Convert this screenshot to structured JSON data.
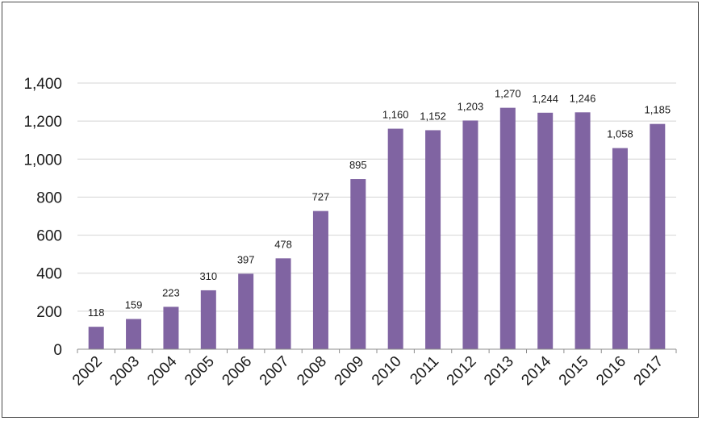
{
  "chart_data": {
    "type": "bar",
    "title": "",
    "xlabel": "",
    "ylabel": "",
    "categories": [
      "2002",
      "2003",
      "2004",
      "2005",
      "2006",
      "2007",
      "2008",
      "2009",
      "2010",
      "2011",
      "2012",
      "2013",
      "2014",
      "2015",
      "2016",
      "2017"
    ],
    "values": [
      118,
      159,
      223,
      310,
      397,
      478,
      727,
      895,
      1160,
      1152,
      1203,
      1270,
      1244,
      1246,
      1058,
      1185
    ],
    "value_labels": [
      "118",
      "159",
      "223",
      "310",
      "397",
      "478",
      "727",
      "895",
      "1,160",
      "1,152",
      "1,203",
      "1,270",
      "1,244",
      "1,246",
      "1,058",
      "1,185"
    ],
    "ylim": [
      0,
      1400
    ],
    "yticks": [
      0,
      200,
      400,
      600,
      800,
      1000,
      1200,
      1400
    ],
    "ytick_labels": [
      "0",
      "200",
      "400",
      "600",
      "800",
      "1,000",
      "1,200",
      "1,400"
    ],
    "grid": true,
    "legend": "none",
    "colors": {
      "bar": "#8064a2",
      "grid": "#d4d4d4",
      "axis": "#8c8c8c",
      "frame": "#4a4a4a"
    }
  }
}
